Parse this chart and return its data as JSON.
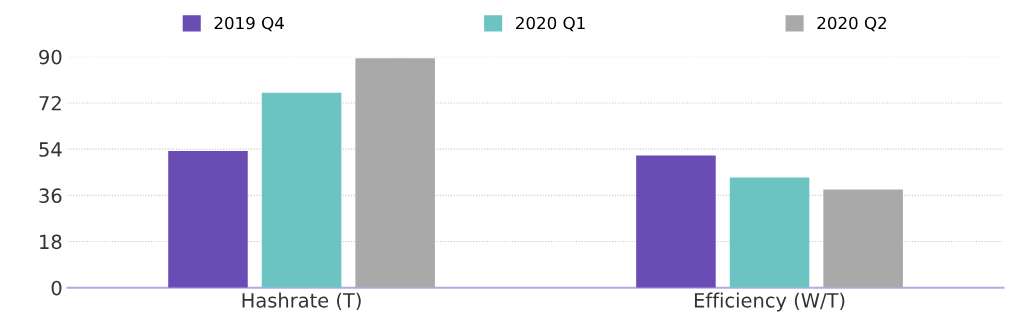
{
  "chart_data": {
    "type": "bar",
    "categories": [
      "Hashrate (T)",
      "Efficiency (W/T)"
    ],
    "series": [
      {
        "name": "2019 Q4",
        "color": "#6a4db4",
        "values": [
          53.3,
          51.5
        ]
      },
      {
        "name": "2020 Q1",
        "color": "#6cc4c2",
        "values": [
          76,
          43
        ]
      },
      {
        "name": "2020 Q2",
        "color": "#a9a9a9",
        "values": [
          89.4,
          38.3
        ]
      }
    ],
    "ylim": [
      0,
      90
    ],
    "yticks": [
      0,
      18,
      36,
      54,
      72,
      90
    ],
    "grid": "y",
    "legend": "top"
  }
}
